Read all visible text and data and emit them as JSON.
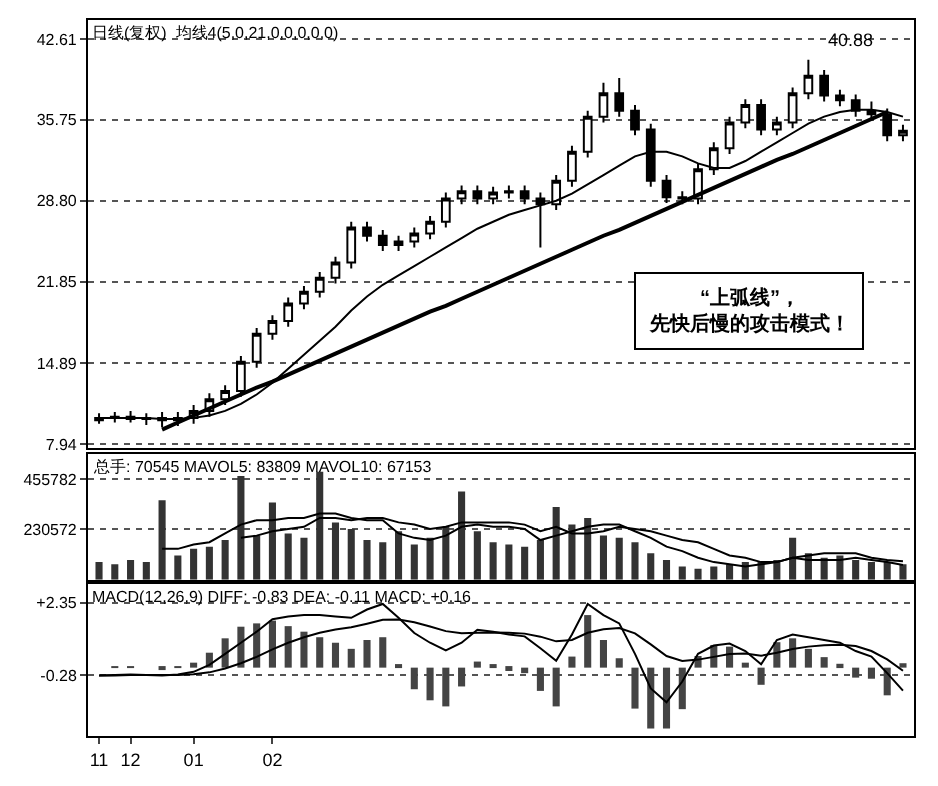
{
  "chart_data": [
    {
      "type": "candlestick",
      "title": "日线(复权)  均线4(5,0,21,0,0,0,0,0)",
      "color": "#000000",
      "categories": [
        "11",
        null,
        "12",
        null,
        null,
        null,
        "01",
        null,
        null,
        null,
        null,
        "02",
        null,
        null,
        null,
        null,
        null,
        null,
        null,
        null,
        null,
        null,
        null,
        null,
        null,
        null,
        null,
        null,
        null,
        null,
        null,
        null,
        null,
        null,
        null,
        null,
        null,
        null,
        null,
        null,
        null,
        null,
        null,
        null,
        null,
        null,
        null,
        null,
        null,
        null,
        null,
        null
      ],
      "ohlc": [
        [
          10.0,
          10.6,
          9.7,
          10.2
        ],
        [
          10.2,
          10.7,
          9.8,
          10.3
        ],
        [
          10.3,
          10.8,
          9.8,
          10.1
        ],
        [
          10.1,
          10.6,
          9.6,
          10.2
        ],
        [
          10.2,
          10.7,
          9.4,
          10.0
        ],
        [
          10.0,
          10.7,
          9.5,
          10.2
        ],
        [
          10.2,
          11.3,
          9.7,
          10.8
        ],
        [
          10.8,
          12.3,
          10.3,
          11.8
        ],
        [
          11.8,
          13.0,
          11.3,
          12.5
        ],
        [
          12.5,
          15.5,
          12.0,
          15.0
        ],
        [
          15.0,
          17.9,
          14.5,
          17.4
        ],
        [
          17.4,
          19.0,
          16.9,
          18.5
        ],
        [
          18.5,
          20.5,
          18.0,
          20.0
        ],
        [
          20.0,
          21.5,
          19.5,
          21.0
        ],
        [
          21.0,
          22.7,
          20.5,
          22.2
        ],
        [
          22.2,
          24.0,
          21.7,
          23.5
        ],
        [
          23.5,
          27.0,
          23.0,
          26.5
        ],
        [
          26.5,
          27.0,
          25.3,
          25.8
        ],
        [
          25.8,
          26.3,
          24.5,
          25.0
        ],
        [
          25.0,
          25.8,
          24.5,
          25.3
        ],
        [
          25.3,
          26.5,
          24.8,
          26.0
        ],
        [
          26.0,
          27.5,
          25.5,
          27.0
        ],
        [
          27.0,
          29.5,
          26.5,
          29.0
        ],
        [
          29.0,
          30.1,
          28.5,
          29.6
        ],
        [
          29.6,
          30.1,
          28.5,
          29.0
        ],
        [
          29.0,
          30.0,
          28.5,
          29.5
        ],
        [
          29.5,
          30.1,
          29.0,
          29.6
        ],
        [
          29.6,
          30.1,
          28.5,
          29.0
        ],
        [
          29.0,
          29.5,
          24.8,
          28.5
        ],
        [
          28.5,
          31.0,
          28.0,
          30.5
        ],
        [
          30.5,
          33.5,
          30.0,
          33.0
        ],
        [
          33.0,
          36.5,
          32.5,
          36.0
        ],
        [
          36.0,
          38.9,
          35.5,
          38.0
        ],
        [
          38.0,
          39.3,
          36.0,
          36.5
        ],
        [
          36.5,
          37.0,
          34.4,
          34.9
        ],
        [
          34.9,
          35.4,
          30.0,
          30.5
        ],
        [
          30.5,
          31.0,
          28.6,
          29.1
        ],
        [
          29.1,
          29.6,
          28.5,
          29.0
        ],
        [
          29.0,
          32.0,
          28.5,
          31.5
        ],
        [
          31.5,
          33.8,
          31.0,
          33.3
        ],
        [
          33.3,
          36.0,
          32.8,
          35.5
        ],
        [
          35.5,
          37.5,
          35.0,
          37.0
        ],
        [
          37.0,
          37.5,
          34.4,
          34.9
        ],
        [
          34.9,
          36.0,
          34.4,
          35.5
        ],
        [
          35.5,
          38.5,
          35.0,
          38.0
        ],
        [
          38.0,
          40.88,
          37.5,
          39.5
        ],
        [
          39.5,
          40.0,
          37.3,
          37.8
        ],
        [
          37.8,
          38.3,
          36.9,
          37.4
        ],
        [
          37.4,
          37.9,
          36.0,
          36.5
        ],
        [
          36.5,
          37.3,
          35.7,
          36.2
        ],
        [
          36.2,
          36.7,
          33.9,
          34.4
        ],
        [
          34.4,
          35.3,
          33.9,
          34.8
        ]
      ],
      "series": [
        {
          "type": "line",
          "color": "#000000",
          "values": [
            10.2,
            10.2,
            10.2,
            10.2,
            10.1,
            10.1,
            10.2,
            10.4,
            10.8,
            11.4,
            12.2,
            13.2,
            14.4,
            15.6,
            16.8,
            18.0,
            19.4,
            20.6,
            21.6,
            22.4,
            23.2,
            24.0,
            24.8,
            25.6,
            26.4,
            27.0,
            27.6,
            28.0,
            28.4,
            28.8,
            29.4,
            30.2,
            31.0,
            31.8,
            32.6,
            33.0,
            33.0,
            32.6,
            32.0,
            31.6,
            31.6,
            32.2,
            33.0,
            33.8,
            34.6,
            35.4,
            36.0,
            36.4,
            36.6,
            36.6,
            36.4,
            36.0
          ]
        },
        {
          "type": "line",
          "color": "#000000",
          "values": [
            null,
            null,
            null,
            null,
            9.2,
            9.8,
            10.4,
            11.0,
            11.6,
            12.2,
            12.8,
            13.3,
            13.9,
            14.5,
            15.1,
            15.7,
            16.3,
            16.9,
            17.5,
            18.1,
            18.7,
            19.3,
            19.8,
            20.4,
            21.0,
            21.6,
            22.2,
            22.8,
            23.4,
            24.0,
            24.6,
            25.2,
            25.8,
            26.3,
            26.9,
            27.5,
            28.1,
            28.7,
            29.3,
            29.9,
            30.5,
            31.1,
            31.7,
            32.3,
            32.8,
            33.4,
            34.0,
            34.6,
            35.2,
            35.8,
            36.4,
            null
          ]
        }
      ],
      "ylim": [
        7.62,
        44.25
      ],
      "yticks": [
        7.94,
        14.89,
        21.85,
        {
          "value": 28.8,
          "label": "28.80"
        },
        35.75,
        42.61
      ],
      "grid": "y",
      "tick_labels": "y",
      "annotations": [
        "40.88",
        "“上弧线”，",
        "先快后慢的攻击模式！"
      ]
    },
    {
      "type": "bar",
      "title": "总手: 70545 MAVOL5: 83809 MAVOL10: 67153",
      "categories": [
        "11",
        null,
        "12",
        null,
        null,
        null,
        "01",
        null,
        null,
        null,
        null,
        "02",
        null,
        null,
        null,
        null,
        null,
        null,
        null,
        null,
        null,
        null,
        null,
        null,
        null,
        null,
        null,
        null,
        null,
        null,
        null,
        null,
        null,
        null,
        null,
        null,
        null,
        null,
        null,
        null,
        null,
        null,
        null,
        null,
        null,
        null,
        null,
        null,
        null,
        null,
        null,
        null
      ],
      "series": [
        {
          "type": "bar",
          "color": "#333333",
          "values": [
            80000,
            70000,
            90000,
            80000,
            360000,
            110000,
            140000,
            150000,
            180000,
            470000,
            200000,
            350000,
            210000,
            190000,
            490000,
            260000,
            230000,
            180000,
            170000,
            220000,
            160000,
            190000,
            240000,
            400000,
            220000,
            170000,
            160000,
            150000,
            180000,
            330000,
            250000,
            280000,
            200000,
            190000,
            170000,
            120000,
            90000,
            60000,
            50000,
            60000,
            70000,
            80000,
            80000,
            90000,
            190000,
            120000,
            100000,
            110000,
            90000,
            80000,
            80000,
            70545
          ]
        },
        {
          "type": "line",
          "color": "#000000",
          "values": [
            null,
            null,
            null,
            null,
            140000,
            140000,
            160000,
            170000,
            210000,
            250000,
            270000,
            270000,
            280000,
            280000,
            300000,
            300000,
            280000,
            270000,
            270000,
            210000,
            190000,
            180000,
            200000,
            240000,
            250000,
            240000,
            240000,
            230000,
            180000,
            200000,
            220000,
            240000,
            250000,
            250000,
            220000,
            190000,
            150000,
            130000,
            100000,
            80000,
            70000,
            60000,
            70000,
            80000,
            100000,
            110000,
            120000,
            120000,
            120000,
            100000,
            90000,
            83809
          ]
        },
        {
          "type": "line",
          "color": "#000000",
          "values": [
            null,
            null,
            null,
            null,
            null,
            null,
            null,
            null,
            null,
            190000,
            200000,
            220000,
            230000,
            240000,
            280000,
            280000,
            270000,
            280000,
            280000,
            260000,
            250000,
            230000,
            240000,
            260000,
            260000,
            260000,
            260000,
            250000,
            220000,
            240000,
            210000,
            210000,
            220000,
            240000,
            230000,
            220000,
            200000,
            180000,
            170000,
            140000,
            110000,
            100000,
            80000,
            80000,
            100000,
            90000,
            90000,
            90000,
            100000,
            90000,
            80000,
            67153
          ]
        }
      ],
      "ylim": [
        0,
        571000
      ],
      "yticks": [
        230572,
        455782
      ],
      "grid": "y",
      "tick_labels": "y"
    },
    {
      "type": "bar",
      "title": "MACD(12,26,9) DIFF: -0.83 DEA: -0.11 MACD: +0.16",
      "categories": [
        "11",
        null,
        "12",
        null,
        null,
        null,
        "01",
        null,
        null,
        null,
        null,
        "02",
        null,
        null,
        null,
        null,
        null,
        null,
        null,
        null,
        null,
        null,
        null,
        null,
        null,
        null,
        null,
        null,
        null,
        null,
        null,
        null,
        null,
        null,
        null,
        null,
        null,
        null,
        null,
        null,
        null,
        null,
        null,
        null,
        null,
        null,
        null,
        null,
        null,
        null,
        null,
        null
      ],
      "series": [
        {
          "type": "bar",
          "color": "#444444",
          "values": [
            0.0,
            0.02,
            0.04,
            0.0,
            -0.02,
            0.04,
            0.18,
            0.54,
            1.06,
            1.48,
            1.6,
            1.7,
            1.5,
            1.3,
            1.1,
            0.9,
            0.68,
            1.0,
            1.1,
            0.12,
            -0.78,
            -1.18,
            -1.4,
            -0.68,
            0.22,
            0.06,
            -0.12,
            -0.2,
            -0.84,
            -1.4,
            0.4,
            1.9,
            1.0,
            0.34,
            -1.48,
            -2.2,
            -2.2,
            -1.5,
            0.42,
            0.82,
            0.76,
            0.18,
            -0.62,
            0.92,
            1.06,
            0.68,
            0.38,
            0.14,
            -0.36,
            -0.4,
            -1.0,
            0.16
          ]
        },
        {
          "type": "line",
          "color": "#000000",
          "values": [
            -0.28,
            -0.27,
            -0.25,
            -0.27,
            -0.28,
            -0.25,
            -0.15,
            0.1,
            0.5,
            0.9,
            1.3,
            1.75,
            1.85,
            1.9,
            1.9,
            1.85,
            1.8,
            2.1,
            2.3,
            1.8,
            1.25,
            0.9,
            0.62,
            0.9,
            1.37,
            1.3,
            1.2,
            1.13,
            0.7,
            0.25,
            1.2,
            2.3,
            1.9,
            1.6,
            0.5,
            -0.75,
            -1.25,
            -0.5,
            0.5,
            0.8,
            0.87,
            0.6,
            0.12,
            1.0,
            1.2,
            1.1,
            1.0,
            0.9,
            0.6,
            0.4,
            -0.2,
            -0.83
          ]
        },
        {
          "type": "line",
          "color": "#000000",
          "values": [
            -0.28,
            -0.28,
            -0.27,
            -0.27,
            -0.27,
            -0.27,
            -0.24,
            -0.17,
            -0.03,
            0.16,
            0.39,
            0.66,
            0.9,
            1.1,
            1.26,
            1.38,
            1.46,
            1.59,
            1.73,
            1.74,
            1.64,
            1.49,
            1.32,
            1.24,
            1.26,
            1.27,
            1.26,
            1.23,
            1.12,
            0.95,
            1.0,
            1.26,
            1.39,
            1.43,
            1.24,
            0.84,
            0.42,
            0.24,
            0.29,
            0.39,
            0.49,
            0.51,
            0.43,
            0.54,
            0.67,
            0.76,
            0.81,
            0.83,
            0.78,
            0.6,
            0.3,
            -0.11
          ]
        }
      ],
      "ylim": [
        -2.47,
        3.02
      ],
      "yticks": [
        {
          "value": 2.35,
          "label": "+2.35"
        },
        -0.28
      ],
      "grid": "y"
    }
  ]
}
